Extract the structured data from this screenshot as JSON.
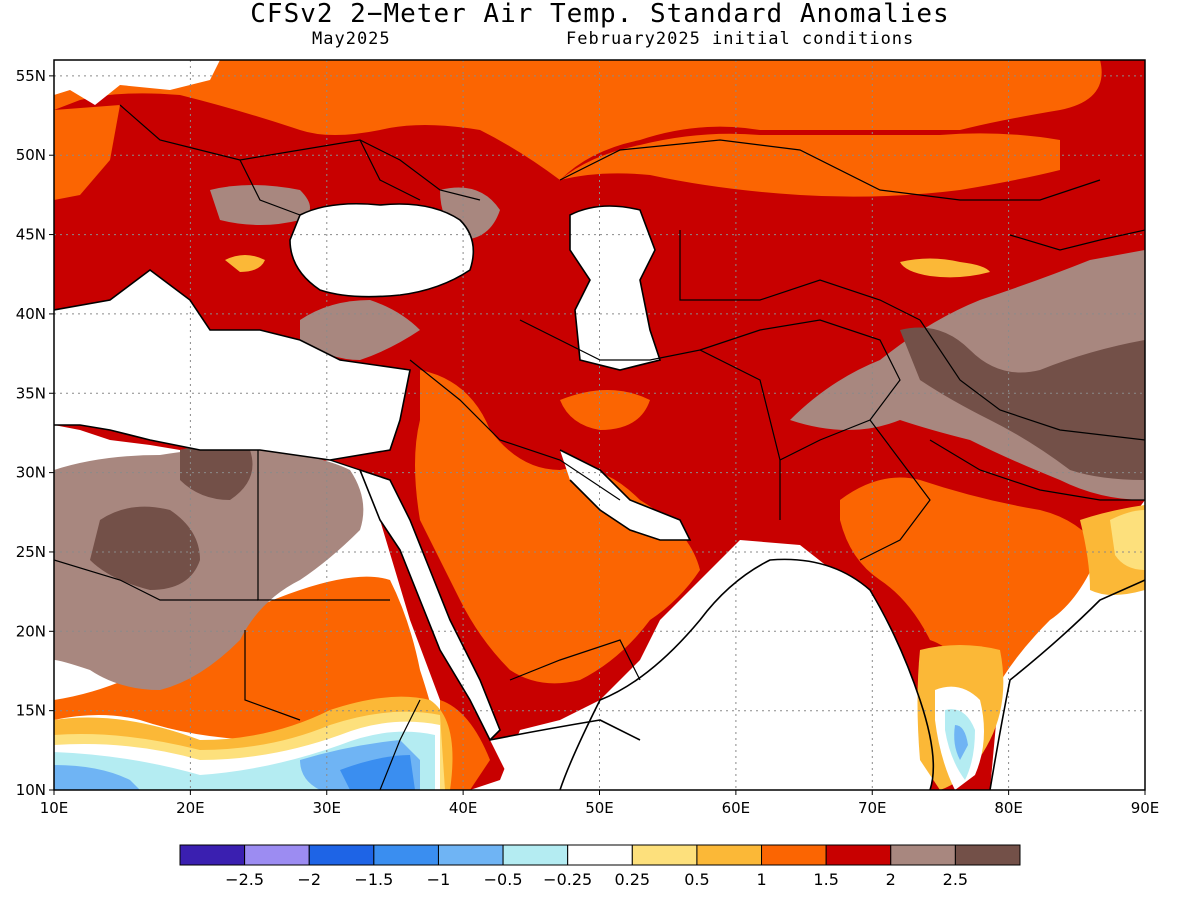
{
  "header": {
    "title": "CFSv2 2−Meter Air Temp. Standard Anomalies",
    "valid_month": "May2025",
    "initial_conditions": "February2025 initial conditions"
  },
  "map": {
    "lon_range": [
      10,
      90
    ],
    "lat_range": [
      10,
      56
    ],
    "lat_ticks": [
      {
        "value": 55,
        "label": "55N"
      },
      {
        "value": 50,
        "label": "50N"
      },
      {
        "value": 45,
        "label": "45N"
      },
      {
        "value": 40,
        "label": "40N"
      },
      {
        "value": 35,
        "label": "35N"
      },
      {
        "value": 30,
        "label": "30N"
      },
      {
        "value": 25,
        "label": "25N"
      },
      {
        "value": 20,
        "label": "20N"
      },
      {
        "value": 15,
        "label": "15N"
      },
      {
        "value": 10,
        "label": "10N"
      }
    ],
    "lon_ticks": [
      {
        "value": 10,
        "label": "10E"
      },
      {
        "value": 20,
        "label": "20E"
      },
      {
        "value": 30,
        "label": "30E"
      },
      {
        "value": 40,
        "label": "40E"
      },
      {
        "value": 50,
        "label": "50E"
      },
      {
        "value": 60,
        "label": "60E"
      },
      {
        "value": 70,
        "label": "70E"
      },
      {
        "value": 80,
        "label": "80E"
      },
      {
        "value": 90,
        "label": "90E"
      }
    ],
    "grid": "dotted"
  },
  "colorbar": {
    "colors": [
      "#3a1fb0",
      "#9c8cf2",
      "#1e64e6",
      "#3a8ef0",
      "#6fb4f4",
      "#b4ecf2",
      "#ffffff",
      "#fde07c",
      "#fbb837",
      "#fb6502",
      "#c80000",
      "#a8877f",
      "#735048"
    ],
    "boundaries": [
      "−2.5",
      "−2",
      "−1.5",
      "−1",
      "−0.5",
      "−0.25",
      "0.25",
      "0.5",
      "1",
      "1.5",
      "2",
      "2.5"
    ]
  },
  "colors": {
    "ocean": "#ffffff",
    "coast": "#000000",
    "anomaly_2_to_2_5": "#a8877f",
    "anomaly_gt_2_5": "#735048",
    "anomaly_1_5_to_2": "#c80000",
    "anomaly_1_to_1_5": "#fb6502"
  }
}
